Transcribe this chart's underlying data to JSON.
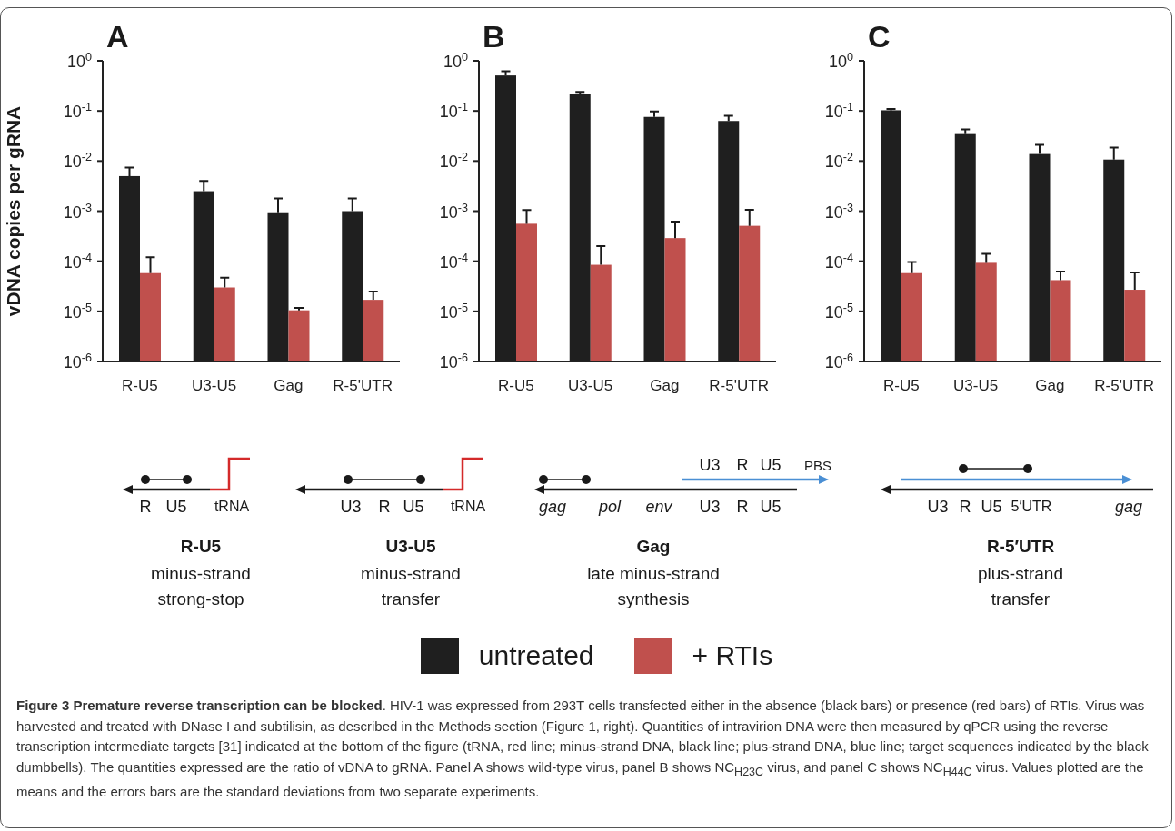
{
  "chart_data": [
    {
      "type": "bar",
      "title": "A",
      "ylabel": "vDNA copies per gRNA",
      "log": true,
      "categories": [
        "R-U5",
        "U3-U5",
        "Gag",
        "R-5'UTR"
      ],
      "series": [
        {
          "color": "#1f1f1f",
          "values": [
            0.005,
            0.0025,
            0.00095,
            0.001
          ],
          "errors": [
            [
              0.005,
              0.0074
            ],
            [
              0.0025,
              0.004
            ],
            [
              0.00095,
              0.0018
            ],
            [
              0.001,
              0.0018
            ]
          ]
        },
        {
          "color": "#c0504d",
          "values": [
            5.8e-05,
            3e-05,
            1.05e-05,
            1.7e-05
          ],
          "errors": [
            [
              5.8e-05,
              0.00012
            ],
            [
              3e-05,
              4.7e-05
            ],
            [
              1.05e-05,
              1.17e-05
            ],
            [
              1.7e-05,
              2.5e-05
            ]
          ]
        }
      ],
      "ylim": [
        1e-06,
        1
      ],
      "yticks": [
        {
          "value": 1e-06,
          "label": "10$^{-6}$"
        },
        {
          "value": 1e-05,
          "label": "10$^{-5}$"
        },
        {
          "value": 0.0001,
          "label": "10$^{-4}$"
        },
        {
          "value": 0.001,
          "label": "10$^{-3}$"
        },
        {
          "value": 0.01,
          "label": "10$^{-2}$"
        },
        {
          "value": 0.1,
          "label": "10$^{-1}$"
        },
        {
          "value": 1,
          "label": "10$^{0}$"
        }
      ]
    },
    {
      "type": "bar",
      "title": "B",
      "log": true,
      "legend": "bottom",
      "categories": [
        "R-U5",
        "U3-U5",
        "Gag",
        "R-5'UTR"
      ],
      "series": [
        {
          "name": "untreated",
          "color": "#1f1f1f",
          "values": [
            0.51,
            0.22,
            0.076,
            0.063
          ],
          "errors": [
            [
              0.51,
              0.62
            ],
            [
              0.22,
              0.24
            ],
            [
              0.076,
              0.098
            ],
            [
              0.063,
              0.08
            ]
          ]
        },
        {
          "name": "+ RTIs",
          "color": "#c0504d",
          "values": [
            0.00056,
            8.5e-05,
            0.00029,
            0.00051
          ],
          "errors": [
            [
              0.00056,
              0.00105
            ],
            [
              8.5e-05,
              0.0002
            ],
            [
              0.00029,
              0.00062
            ],
            [
              0.00051,
              0.00107
            ]
          ]
        }
      ],
      "ylim": [
        1e-06,
        1
      ],
      "yticks": [
        {
          "value": 1e-06,
          "label": "10$^{-6}$"
        },
        {
          "value": 1e-05,
          "label": "10$^{-5}$"
        },
        {
          "value": 0.0001,
          "label": "10$^{-4}$"
        },
        {
          "value": 0.001,
          "label": "10$^{-3}$"
        },
        {
          "value": 0.01,
          "label": "10$^{-2}$"
        },
        {
          "value": 0.1,
          "label": "10$^{-1}$"
        },
        {
          "value": 1,
          "label": "10$^{0}$"
        }
      ]
    },
    {
      "type": "bar",
      "title": "C",
      "log": true,
      "categories": [
        "R-U5",
        "U3-U5",
        "Gag",
        "R-5'UTR"
      ],
      "series": [
        {
          "color": "#1f1f1f",
          "values": [
            0.103,
            0.036,
            0.0138,
            0.0107
          ],
          "errors": [
            [
              0.103,
              0.11
            ],
            [
              0.036,
              0.043
            ],
            [
              0.0138,
              0.021
            ],
            [
              0.0107,
              0.0185
            ]
          ]
        },
        {
          "color": "#c0504d",
          "values": [
            5.8e-05,
            9.3e-05,
            4.2e-05,
            2.7e-05
          ],
          "errors": [
            [
              5.8e-05,
              9.7e-05
            ],
            [
              9.3e-05,
              0.00014
            ],
            [
              4.2e-05,
              6.2e-05
            ],
            [
              2.7e-05,
              6e-05
            ]
          ]
        }
      ],
      "ylim": [
        1e-06,
        1
      ],
      "yticks": [
        {
          "value": 1e-06,
          "label": "10$^{-6}$"
        },
        {
          "value": 1e-05,
          "label": "10$^{-5}$"
        },
        {
          "value": 0.0001,
          "label": "10$^{-4}$"
        },
        {
          "value": 0.001,
          "label": "10$^{-3}$"
        },
        {
          "value": 0.01,
          "label": "10$^{-2}$"
        },
        {
          "value": 0.1,
          "label": "10$^{-1}$"
        },
        {
          "value": 1,
          "label": "10$^{0}$"
        }
      ]
    },
    {
      "type": "other",
      "annotations": [
        "R",
        "U5",
        "tRNA",
        "R-U5",
        "minus-strand",
        "strong-stop",
        "U3",
        "R",
        "U5",
        "tRNA",
        "U3-U5",
        "minus-strand",
        "transfer",
        "U3",
        "R",
        "U5",
        "PBS",
        "gag",
        "pol",
        "env",
        "U3",
        "R",
        "U5",
        "Gag",
        "late minus-strand",
        "synthesis",
        "U3",
        "R",
        "U5",
        "5′UTR",
        "gag",
        "R-5′UTR",
        "plus-strand",
        "transfer",
        "Figure 3 Premature reverse transcription can be blocked",
        ". HIV-1 was expressed from 293T cells transfected either in the absence (black bars) or presence (red bars) of RTIs. Virus was harvested and treated with DNase I and subtilisin, as described in the Methods section (Figure 1, right). Quantities of intravirion DNA were then measured by qPCR using the reverse transcription intermediate targets [31] indicated at the bottom of the figure (tRNA, red line; minus-strand DNA, black line; plus-strand DNA, blue line; target sequences indicated by the black dumbbells). The quantities expressed are the ratio of vDNA to gRNA. Panel A shows wild-type virus, panel B shows NC$_{H23C}$ virus, and panel C shows NC$_{H44C}$ virus. Values plotted are the means and the errors bars are the standard deviations from two separate experiments."
      ]
    }
  ]
}
